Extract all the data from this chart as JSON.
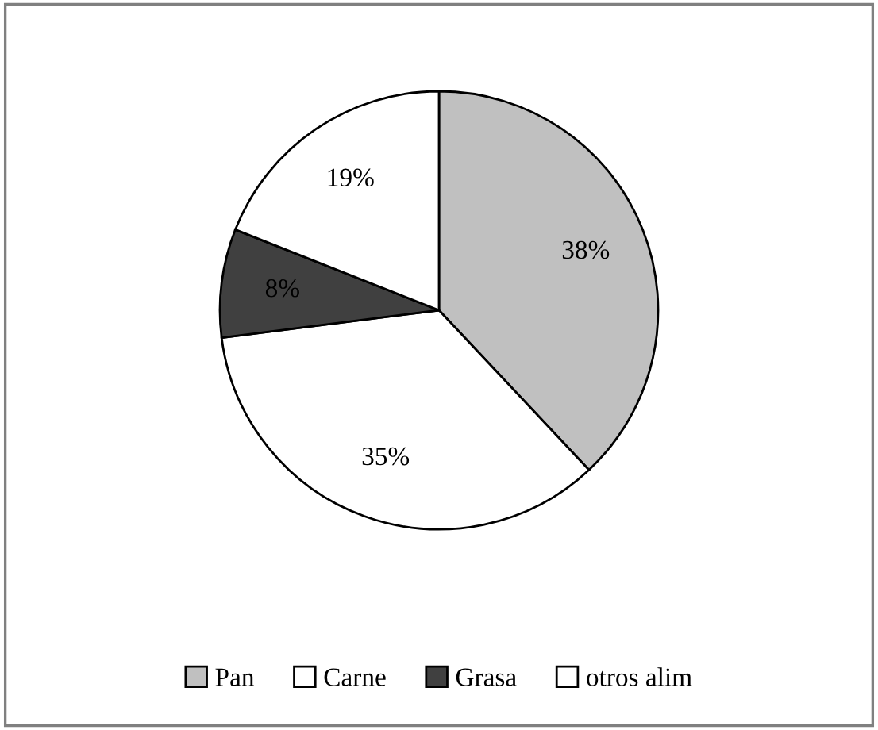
{
  "chart_data": {
    "type": "pie",
    "categories": [
      "Pan",
      "Carne",
      "Grasa",
      "otros alim"
    ],
    "values": [
      38,
      35,
      8,
      19
    ],
    "colors": [
      "#c0c0c0",
      "#ffffff",
      "#404040",
      "#ffffff"
    ],
    "value_labels": [
      "38%",
      "35%",
      "8%",
      "19%"
    ],
    "legend": "bottom"
  }
}
